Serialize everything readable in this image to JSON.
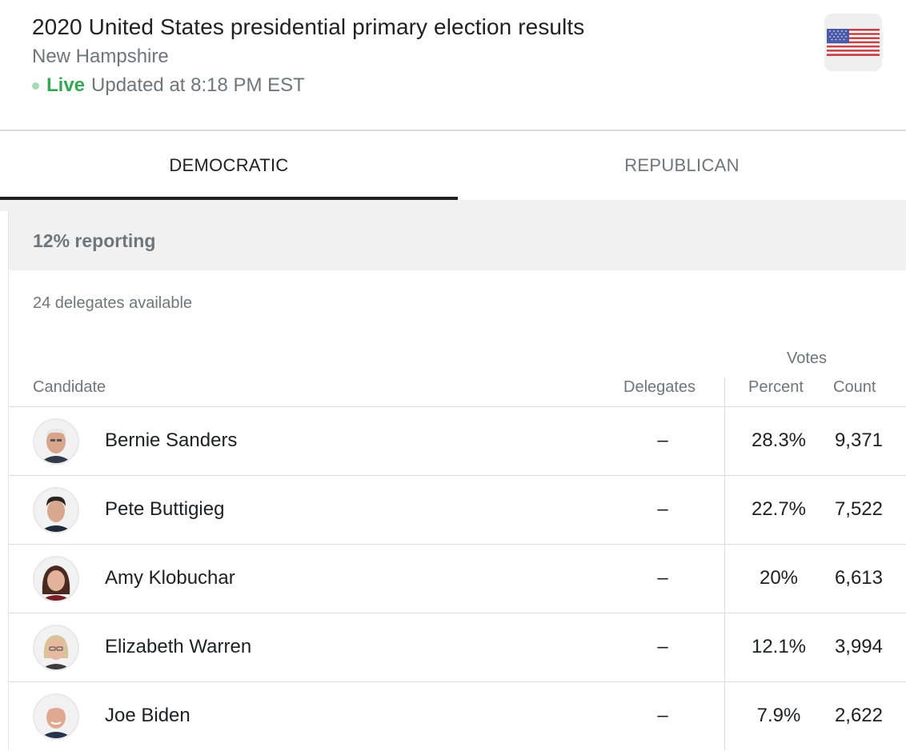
{
  "header": {
    "title": "2020 United States presidential primary election results",
    "subtitle": "New Hampshire",
    "live_label": "Live",
    "updated": "Updated at 8:18 PM EST",
    "flag_icon": "us-flag-icon"
  },
  "tabs": [
    {
      "label": "DEMOCRATIC",
      "active": true
    },
    {
      "label": "REPUBLICAN",
      "active": false
    }
  ],
  "results": {
    "reporting": "12% reporting",
    "delegates_available": "24 delegates available",
    "columns": {
      "votes_group": "Votes",
      "candidate": "Candidate",
      "delegates": "Delegates",
      "percent": "Percent",
      "count": "Count"
    },
    "rows": [
      {
        "name": "Bernie Sanders",
        "delegates": "–",
        "percent": "28.3%",
        "count": "9,371"
      },
      {
        "name": "Pete Buttigieg",
        "delegates": "–",
        "percent": "22.7%",
        "count": "7,522"
      },
      {
        "name": "Amy Klobuchar",
        "delegates": "–",
        "percent": "20%",
        "count": "6,613"
      },
      {
        "name": "Elizabeth Warren",
        "delegates": "–",
        "percent": "12.1%",
        "count": "3,994"
      },
      {
        "name": "Joe Biden",
        "delegates": "–",
        "percent": "7.9%",
        "count": "2,622"
      }
    ]
  },
  "colors": {
    "live_green": "#34a853",
    "muted_text": "#70757a",
    "active_tab_underline": "#202124"
  }
}
